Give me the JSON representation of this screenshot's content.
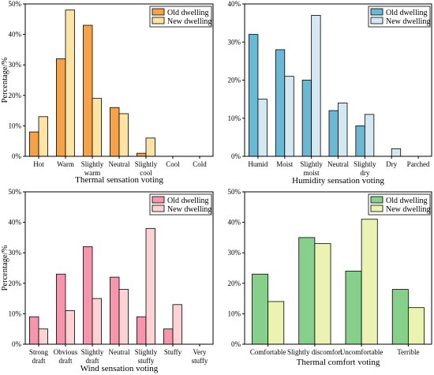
{
  "chart_data": [
    {
      "type": "bar",
      "xlabel": "Thermal sensation voting",
      "ylabel": "Percentage/%",
      "ylim": [
        0,
        50
      ],
      "yticks": [
        "0%",
        "10%",
        "20%",
        "30%",
        "40%",
        "50%"
      ],
      "categories": [
        [
          "Hot"
        ],
        [
          "Warm"
        ],
        [
          "Slightly",
          "warm"
        ],
        [
          "Neutral"
        ],
        [
          "Slightly",
          "cool"
        ],
        [
          "Cool"
        ],
        [
          "Cold"
        ]
      ],
      "series": [
        {
          "name": "Old dwelling",
          "values": [
            8,
            32,
            43,
            16,
            1,
            0,
            0
          ],
          "color": "#f5a34b"
        },
        {
          "name": "New dwelling",
          "values": [
            13,
            48,
            19,
            14,
            6,
            0,
            0
          ],
          "color": "#fde3a4"
        }
      ],
      "legend": "top-right"
    },
    {
      "type": "bar",
      "xlabel": "Humidity sensation voting",
      "ylabel": "",
      "ylim": [
        0,
        40
      ],
      "yticks": [
        "0%",
        "10%",
        "20%",
        "30%",
        "40%"
      ],
      "categories": [
        [
          "Humid"
        ],
        [
          "Moist"
        ],
        [
          "Slightly",
          "moist"
        ],
        [
          "Neutral"
        ],
        [
          "Slightly",
          "dry"
        ],
        [
          "Dry"
        ],
        [
          "Parched"
        ]
      ],
      "series": [
        {
          "name": "Old dwelling",
          "values": [
            32,
            28,
            20,
            12,
            8,
            0,
            0
          ],
          "color": "#6bb8d4"
        },
        {
          "name": "New dwelling",
          "values": [
            15,
            21,
            37,
            14,
            11,
            2,
            0
          ],
          "color": "#d4e8f2"
        }
      ],
      "legend": "top-right"
    },
    {
      "type": "bar",
      "xlabel": "Wind sensation voting",
      "ylabel": "Percentage/%",
      "ylim": [
        0,
        50
      ],
      "yticks": [
        "0%",
        "10%",
        "20%",
        "30%",
        "40%",
        "50%"
      ],
      "categories": [
        [
          "Strong",
          "draft"
        ],
        [
          "Obvious",
          "draft"
        ],
        [
          "Slightly",
          "draft"
        ],
        [
          "Neutral"
        ],
        [
          "Slightly",
          "stuffy"
        ],
        [
          "Stuffy"
        ],
        [
          "Very",
          "stuffy"
        ]
      ],
      "series": [
        {
          "name": "Old dwelling",
          "values": [
            9,
            23,
            32,
            22,
            9,
            5,
            0
          ],
          "color": "#f497ad"
        },
        {
          "name": "New dwelling",
          "values": [
            5,
            11,
            15,
            18,
            38,
            13,
            0
          ],
          "color": "#fbd3d5"
        }
      ],
      "legend": "top-right"
    },
    {
      "type": "bar",
      "xlabel": "Thermal comfort voting",
      "ylabel": "",
      "ylim": [
        0,
        50
      ],
      "yticks": [
        "0%",
        "10%",
        "20%",
        "30%",
        "40%",
        "50%"
      ],
      "categories": [
        [
          "Comfortable"
        ],
        [
          "Slightly discomfort"
        ],
        [
          "Uncomfortable"
        ],
        [
          "Terrible"
        ]
      ],
      "series": [
        {
          "name": "Old dwelling",
          "values": [
            23,
            35,
            24,
            18
          ],
          "color": "#86d08c"
        },
        {
          "name": "New dwelling",
          "values": [
            14,
            33,
            41,
            12
          ],
          "color": "#ecf3b2"
        }
      ],
      "legend": "top-right"
    }
  ]
}
